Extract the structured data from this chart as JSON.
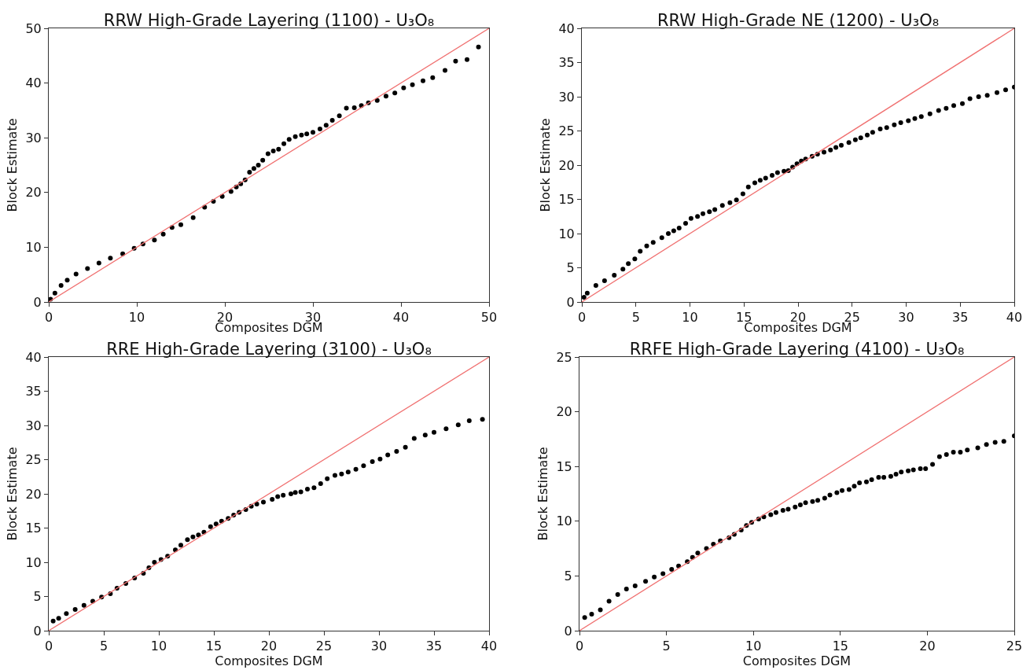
{
  "chart_data": [
    {
      "type": "scatter",
      "title": "RRW High-Grade Layering (1100) - U₃O₈",
      "xlabel": "Composites DGM",
      "ylabel": "Block Estimate",
      "xlim": [
        0,
        50
      ],
      "ylim": [
        0,
        50
      ],
      "xticks": [
        0,
        10,
        20,
        30,
        40,
        50
      ],
      "yticks": [
        0,
        10,
        20,
        30,
        40,
        50
      ],
      "grid": false,
      "series": [
        {
          "type": "scatter",
          "marker": "circle",
          "color": "#000000",
          "x": [
            0.2,
            0.7,
            1.4,
            2.1,
            3.1,
            4.4,
            5.7,
            7,
            8.4,
            9.7,
            10.7,
            12,
            13,
            14,
            15,
            16.4,
            17.7,
            18.7,
            19.7,
            20.7,
            21.3,
            21.8,
            22.3,
            22.8,
            23.3,
            23.8,
            24.3,
            24.9,
            25.5,
            26.1,
            26.7,
            27.3,
            28,
            28.7,
            29.3,
            30,
            30.8,
            31.5,
            32.2,
            33,
            33.8,
            34.7,
            35.5,
            36.3,
            37.3,
            38.3,
            39.3,
            40.3,
            41.3,
            42.5,
            43.6,
            45,
            46.2,
            47.5,
            48.8
          ],
          "values": [
            0.5,
            1.6,
            3,
            4,
            5.1,
            6.1,
            7.1,
            8,
            8.8,
            9.8,
            10.6,
            11.3,
            12.4,
            13.6,
            14.1,
            15.4,
            17.3,
            18.4,
            19.3,
            20.2,
            21,
            21.6,
            22.3,
            23.7,
            24.4,
            25,
            25.9,
            27.1,
            27.6,
            27.9,
            28.9,
            29.7,
            30.2,
            30.5,
            30.7,
            31,
            31.6,
            32.3,
            33.2,
            34,
            35.4,
            35.5,
            35.9,
            36.4,
            36.8,
            37.6,
            38.2,
            39.1,
            39.7,
            40.4,
            41,
            42.3,
            44,
            44.3,
            46.6
          ]
        },
        {
          "type": "line",
          "marker": "none",
          "color": "#f07070",
          "line_style": "solid",
          "x": [
            0,
            50
          ],
          "values": [
            0,
            50
          ]
        }
      ]
    },
    {
      "type": "scatter",
      "title": "RRW High-Grade NE (1200) - U₃O₈",
      "xlabel": "Composites DGM",
      "ylabel": "Block Estimate",
      "xlim": [
        0,
        40
      ],
      "ylim": [
        0,
        40
      ],
      "xticks": [
        0,
        5,
        10,
        15,
        20,
        25,
        30,
        35,
        40
      ],
      "yticks": [
        0,
        5,
        10,
        15,
        20,
        25,
        30,
        35,
        40
      ],
      "grid": false,
      "series": [
        {
          "type": "scatter",
          "marker": "circle",
          "color": "#000000",
          "x": [
            0.2,
            0.5,
            1.3,
            2.1,
            3,
            3.8,
            4.3,
            4.9,
            5.4,
            6,
            6.6,
            7.4,
            8,
            8.5,
            9,
            9.6,
            10.1,
            10.7,
            11.2,
            11.8,
            12.3,
            13,
            13.7,
            14.3,
            14.9,
            15.4,
            16,
            16.5,
            17,
            17.6,
            18.1,
            18.7,
            19.1,
            19.5,
            19.9,
            20.3,
            20.7,
            21.3,
            21.8,
            22.4,
            23,
            23.5,
            24,
            24.7,
            25.3,
            25.8,
            26.4,
            26.9,
            27.6,
            28.2,
            28.9,
            29.5,
            30.2,
            30.8,
            31.4,
            32.2,
            33,
            33.7,
            34.4,
            35.2,
            35.9,
            36.7,
            37.5,
            38.4,
            39.2,
            40
          ],
          "values": [
            0.7,
            1.3,
            2.4,
            3.1,
            3.9,
            4.8,
            5.6,
            6.3,
            7.4,
            8.2,
            8.7,
            9.4,
            10,
            10.4,
            10.8,
            11.5,
            12.2,
            12.5,
            12.9,
            13.2,
            13.5,
            14.1,
            14.5,
            14.9,
            15.8,
            16.8,
            17.4,
            17.8,
            18.1,
            18.5,
            18.9,
            19.1,
            19.2,
            19.7,
            20.2,
            20.6,
            20.9,
            21.3,
            21.6,
            21.9,
            22.2,
            22.6,
            22.9,
            23.3,
            23.7,
            24,
            24.4,
            24.8,
            25.3,
            25.5,
            25.9,
            26.2,
            26.5,
            26.8,
            27.1,
            27.5,
            28,
            28.3,
            28.7,
            29,
            29.7,
            30,
            30.2,
            30.6,
            31,
            31.4
          ]
        },
        {
          "type": "line",
          "marker": "none",
          "color": "#f07070",
          "line_style": "solid",
          "x": [
            0,
            40
          ],
          "values": [
            0,
            40
          ]
        }
      ]
    },
    {
      "type": "scatter",
      "title": "RRE High-Grade Layering (3100) - U₃O₈",
      "xlabel": "Composites DGM",
      "ylabel": "Block Estimate",
      "xlim": [
        0,
        40
      ],
      "ylim": [
        0,
        40
      ],
      "xticks": [
        0,
        5,
        10,
        15,
        20,
        25,
        30,
        35,
        40
      ],
      "yticks": [
        0,
        5,
        10,
        15,
        20,
        25,
        30,
        35,
        40
      ],
      "grid": false,
      "series": [
        {
          "type": "scatter",
          "marker": "circle",
          "color": "#000000",
          "x": [
            0.4,
            0.9,
            1.6,
            2.4,
            3.2,
            4,
            4.8,
            5.6,
            6.2,
            7,
            7.8,
            8.6,
            9.1,
            9.6,
            10.2,
            10.8,
            11.5,
            12,
            12.6,
            13.1,
            13.6,
            14.1,
            14.7,
            15.2,
            15.7,
            16.3,
            16.8,
            17.3,
            17.9,
            18.4,
            18.9,
            19.5,
            20.3,
            20.8,
            21.3,
            22,
            22.4,
            22.9,
            23.5,
            24.1,
            24.7,
            25.3,
            26,
            26.6,
            27.2,
            27.9,
            28.6,
            29.4,
            30.1,
            30.8,
            31.6,
            32.4,
            33.2,
            34.2,
            35,
            36.1,
            37.2,
            38.2,
            39.4
          ],
          "values": [
            1.4,
            1.8,
            2.5,
            3.1,
            3.7,
            4.3,
            4.9,
            5.4,
            6.2,
            6.9,
            7.7,
            8.4,
            9.2,
            10,
            10.4,
            10.9,
            11.8,
            12.5,
            13.3,
            13.7,
            14,
            14.4,
            15.2,
            15.6,
            16,
            16.4,
            16.9,
            17.3,
            17.7,
            18.2,
            18.5,
            18.8,
            19.2,
            19.6,
            19.8,
            20,
            20.2,
            20.3,
            20.7,
            20.9,
            21.5,
            22.2,
            22.7,
            22.9,
            23.2,
            23.6,
            24.1,
            24.7,
            25.1,
            25.7,
            26.2,
            26.8,
            28.1,
            28.6,
            29,
            29.5,
            30.1,
            30.7,
            30.9
          ]
        },
        {
          "type": "line",
          "marker": "none",
          "color": "#f07070",
          "line_style": "solid",
          "x": [
            0,
            40
          ],
          "values": [
            0,
            40
          ]
        }
      ]
    },
    {
      "type": "scatter",
      "title": "RRFE High-Grade Layering (4100) - U₃O₈",
      "xlabel": "Composites DGM",
      "ylabel": "Block Estimate",
      "xlim": [
        0,
        25
      ],
      "ylim": [
        0,
        25
      ],
      "xticks": [
        0,
        5,
        10,
        15,
        20,
        25
      ],
      "yticks": [
        0,
        5,
        10,
        15,
        20,
        25
      ],
      "grid": false,
      "series": [
        {
          "type": "scatter",
          "marker": "circle",
          "color": "#000000",
          "x": [
            0.3,
            0.7,
            1.2,
            1.7,
            2.2,
            2.7,
            3.2,
            3.8,
            4.3,
            4.8,
            5.3,
            5.7,
            6.2,
            6.5,
            6.8,
            7.3,
            7.7,
            8.1,
            8.6,
            8.9,
            9.3,
            9.6,
            9.9,
            10.3,
            10.6,
            11,
            11.3,
            11.7,
            12,
            12.4,
            12.7,
            13,
            13.4,
            13.7,
            14.1,
            14.4,
            14.8,
            15.1,
            15.5,
            15.8,
            16.1,
            16.5,
            16.8,
            17.2,
            17.5,
            17.9,
            18.2,
            18.5,
            18.9,
            19.2,
            19.6,
            19.9,
            20.3,
            20.7,
            21.1,
            21.5,
            21.9,
            22.3,
            22.9,
            23.4,
            23.9,
            24.4,
            25
          ],
          "values": [
            1.2,
            1.5,
            1.9,
            2.7,
            3.3,
            3.8,
            4.1,
            4.5,
            4.9,
            5.2,
            5.6,
            5.9,
            6.3,
            6.7,
            7.1,
            7.5,
            7.9,
            8.2,
            8.5,
            8.8,
            9.2,
            9.6,
            9.9,
            10.2,
            10.4,
            10.6,
            10.8,
            11,
            11.1,
            11.3,
            11.5,
            11.7,
            11.8,
            11.9,
            12.1,
            12.4,
            12.6,
            12.8,
            12.9,
            13.2,
            13.5,
            13.6,
            13.8,
            14,
            14,
            14.1,
            14.3,
            14.5,
            14.6,
            14.7,
            14.8,
            14.8,
            15.2,
            15.9,
            16.1,
            16.3,
            16.3,
            16.5,
            16.7,
            17,
            17.2,
            17.3,
            17.8
          ]
        },
        {
          "type": "line",
          "marker": "none",
          "color": "#f07070",
          "line_style": "solid",
          "x": [
            0,
            25
          ],
          "values": [
            0,
            25
          ]
        }
      ]
    }
  ]
}
